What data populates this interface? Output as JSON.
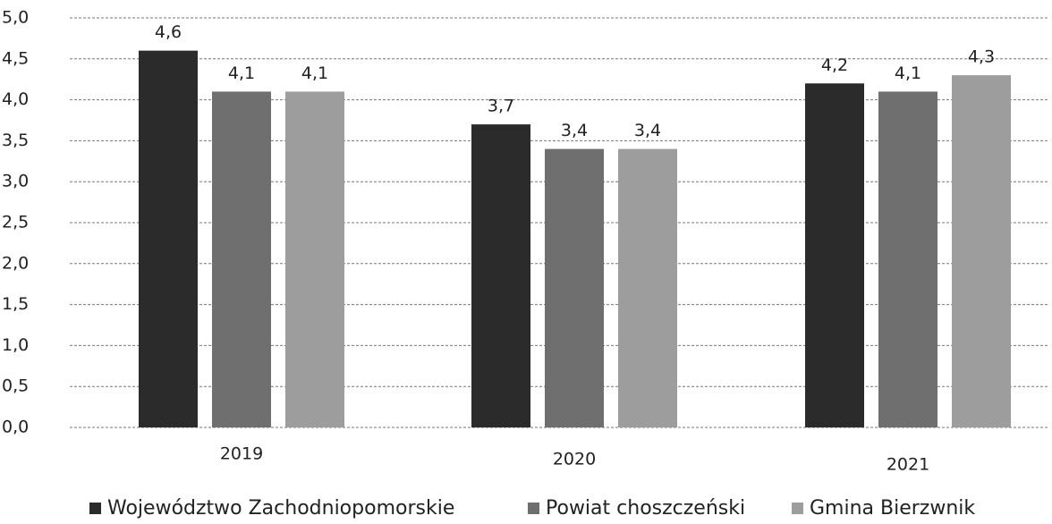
{
  "chart_data": {
    "type": "bar",
    "categories": [
      "2019",
      "2020",
      "2021"
    ],
    "series": [
      {
        "name": "Województwo Zachodniopomorskie",
        "color": "#2b2b2b",
        "values": [
          4.6,
          3.7,
          4.2
        ],
        "value_labels": [
          "4,6",
          "3,7",
          "4,2"
        ]
      },
      {
        "name": "Powiat choszczeński",
        "color": "#6f6f6f",
        "values": [
          4.1,
          3.4,
          4.1
        ],
        "value_labels": [
          "4,1",
          "3,4",
          "4,1"
        ]
      },
      {
        "name": "Gmina Bierzwnik",
        "color": "#9d9d9d",
        "values": [
          4.1,
          3.4,
          4.3
        ],
        "value_labels": [
          "4,1",
          "3,4",
          "4,3"
        ]
      }
    ],
    "ylim": [
      0,
      5
    ],
    "yticks": [
      {
        "value": 0,
        "label": "0,0"
      },
      {
        "value": 0.5,
        "label": "0,5"
      },
      {
        "value": 1,
        "label": "1,0"
      },
      {
        "value": 1.5,
        "label": "1,5"
      },
      {
        "value": 2,
        "label": "2,0"
      },
      {
        "value": 2.5,
        "label": "2,5"
      },
      {
        "value": 3,
        "label": "3,0"
      },
      {
        "value": 3.5,
        "label": "3,5"
      },
      {
        "value": 4,
        "label": "4,0"
      },
      {
        "value": 4.5,
        "label": "4,5"
      },
      {
        "value": 5,
        "label": "5,0"
      }
    ],
    "grid": true,
    "legend": "bottom"
  }
}
